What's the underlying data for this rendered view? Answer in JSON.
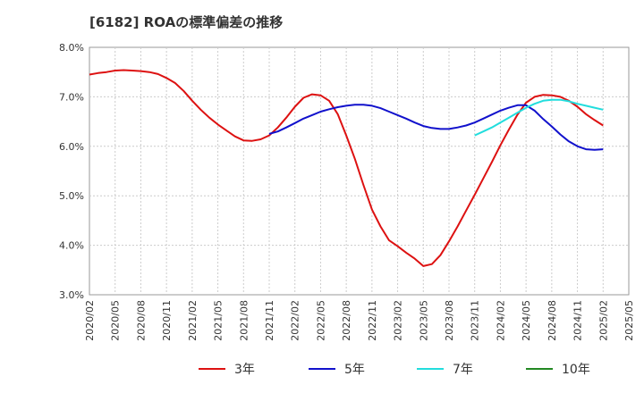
{
  "chart_data": {
    "type": "line",
    "title": "[6182]  ROAの標準偏差の推移",
    "xlabel": "",
    "ylabel": "",
    "ylim": [
      3.0,
      8.0
    ],
    "y_ticks": [
      "3.0%",
      "4.0%",
      "5.0%",
      "6.0%",
      "7.0%",
      "8.0%"
    ],
    "x_ticks": [
      "2020/02",
      "2020/05",
      "2020/08",
      "2020/11",
      "2021/02",
      "2021/05",
      "2021/08",
      "2021/11",
      "2022/02",
      "2022/05",
      "2022/08",
      "2022/11",
      "2023/02",
      "2023/05",
      "2023/08",
      "2023/11",
      "2024/02",
      "2024/05",
      "2024/08",
      "2024/11",
      "2025/02",
      "2025/05"
    ],
    "grid": true,
    "legend_position": "bottom",
    "series": [
      {
        "name": "3年",
        "color": "#dd1111",
        "points": [
          [
            "2020/02",
            7.45
          ],
          [
            "2020/03",
            7.48
          ],
          [
            "2020/04",
            7.5
          ],
          [
            "2020/05",
            7.53
          ],
          [
            "2020/06",
            7.54
          ],
          [
            "2020/07",
            7.53
          ],
          [
            "2020/08",
            7.52
          ],
          [
            "2020/09",
            7.5
          ],
          [
            "2020/10",
            7.46
          ],
          [
            "2020/11",
            7.38
          ],
          [
            "2020/12",
            7.28
          ],
          [
            "2021/01",
            7.12
          ],
          [
            "2021/02",
            6.92
          ],
          [
            "2021/03",
            6.74
          ],
          [
            "2021/04",
            6.58
          ],
          [
            "2021/05",
            6.44
          ],
          [
            "2021/06",
            6.32
          ],
          [
            "2021/07",
            6.2
          ],
          [
            "2021/08",
            6.12
          ],
          [
            "2021/09",
            6.11
          ],
          [
            "2021/10",
            6.14
          ],
          [
            "2021/11",
            6.22
          ],
          [
            "2021/12",
            6.38
          ],
          [
            "2022/01",
            6.58
          ],
          [
            "2022/02",
            6.8
          ],
          [
            "2022/03",
            6.98
          ],
          [
            "2022/04",
            7.05
          ],
          [
            "2022/05",
            7.03
          ],
          [
            "2022/06",
            6.92
          ],
          [
            "2022/07",
            6.65
          ],
          [
            "2022/08",
            6.22
          ],
          [
            "2022/09",
            5.75
          ],
          [
            "2022/10",
            5.22
          ],
          [
            "2022/11",
            4.72
          ],
          [
            "2022/12",
            4.38
          ],
          [
            "2023/01",
            4.1
          ],
          [
            "2023/02",
            3.98
          ],
          [
            "2023/03",
            3.85
          ],
          [
            "2023/04",
            3.73
          ],
          [
            "2023/05",
            3.58
          ],
          [
            "2023/06",
            3.62
          ],
          [
            "2023/07",
            3.8
          ],
          [
            "2023/08",
            4.08
          ],
          [
            "2023/09",
            4.38
          ],
          [
            "2023/10",
            4.7
          ],
          [
            "2023/11",
            5.02
          ],
          [
            "2023/12",
            5.35
          ],
          [
            "2024/01",
            5.68
          ],
          [
            "2024/02",
            6.02
          ],
          [
            "2024/03",
            6.34
          ],
          [
            "2024/04",
            6.64
          ],
          [
            "2024/05",
            6.88
          ],
          [
            "2024/06",
            7.0
          ],
          [
            "2024/07",
            7.04
          ],
          [
            "2024/08",
            7.03
          ],
          [
            "2024/09",
            7.0
          ],
          [
            "2024/10",
            6.92
          ],
          [
            "2024/11",
            6.8
          ],
          [
            "2024/12",
            6.65
          ],
          [
            "2025/01",
            6.53
          ],
          [
            "2025/02",
            6.42
          ]
        ]
      },
      {
        "name": "5年",
        "color": "#1111cc",
        "points": [
          [
            "2021/11",
            6.25
          ],
          [
            "2021/12",
            6.3
          ],
          [
            "2022/01",
            6.38
          ],
          [
            "2022/02",
            6.47
          ],
          [
            "2022/03",
            6.56
          ],
          [
            "2022/04",
            6.63
          ],
          [
            "2022/05",
            6.7
          ],
          [
            "2022/06",
            6.75
          ],
          [
            "2022/07",
            6.79
          ],
          [
            "2022/08",
            6.82
          ],
          [
            "2022/09",
            6.84
          ],
          [
            "2022/10",
            6.84
          ],
          [
            "2022/11",
            6.82
          ],
          [
            "2022/12",
            6.77
          ],
          [
            "2023/01",
            6.7
          ],
          [
            "2023/02",
            6.63
          ],
          [
            "2023/03",
            6.56
          ],
          [
            "2023/04",
            6.48
          ],
          [
            "2023/05",
            6.41
          ],
          [
            "2023/06",
            6.37
          ],
          [
            "2023/07",
            6.35
          ],
          [
            "2023/08",
            6.35
          ],
          [
            "2023/09",
            6.38
          ],
          [
            "2023/10",
            6.42
          ],
          [
            "2023/11",
            6.48
          ],
          [
            "2023/12",
            6.56
          ],
          [
            "2024/01",
            6.64
          ],
          [
            "2024/02",
            6.72
          ],
          [
            "2024/03",
            6.78
          ],
          [
            "2024/04",
            6.83
          ],
          [
            "2024/05",
            6.83
          ],
          [
            "2024/06",
            6.72
          ],
          [
            "2024/07",
            6.55
          ],
          [
            "2024/08",
            6.4
          ],
          [
            "2024/09",
            6.24
          ],
          [
            "2024/10",
            6.1
          ],
          [
            "2024/11",
            6.0
          ],
          [
            "2024/12",
            5.94
          ],
          [
            "2025/01",
            5.93
          ],
          [
            "2025/02",
            5.94
          ]
        ]
      },
      {
        "name": "7年",
        "color": "#22dddd",
        "points": [
          [
            "2023/11",
            6.22
          ],
          [
            "2023/12",
            6.3
          ],
          [
            "2024/01",
            6.38
          ],
          [
            "2024/02",
            6.48
          ],
          [
            "2024/03",
            6.58
          ],
          [
            "2024/04",
            6.68
          ],
          [
            "2024/05",
            6.78
          ],
          [
            "2024/06",
            6.86
          ],
          [
            "2024/07",
            6.92
          ],
          [
            "2024/08",
            6.94
          ],
          [
            "2024/09",
            6.94
          ],
          [
            "2024/10",
            6.91
          ],
          [
            "2024/11",
            6.86
          ],
          [
            "2024/12",
            6.82
          ],
          [
            "2025/01",
            6.78
          ],
          [
            "2025/02",
            6.74
          ]
        ]
      },
      {
        "name": "10年",
        "color": "#228822",
        "points": []
      }
    ]
  }
}
